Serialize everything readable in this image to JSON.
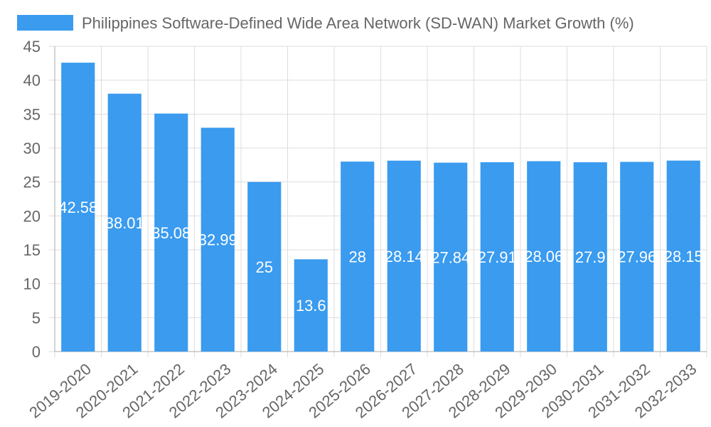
{
  "chart_data": {
    "type": "bar",
    "title": "",
    "xlabel": "",
    "ylabel": "",
    "legend": {
      "placement": "top",
      "entries": [
        "Philippines Software-Defined Wide Area Network (SD-WAN) Market Growth (%)"
      ]
    },
    "categories": [
      "2019-2020",
      "2020-2021",
      "2021-2022",
      "2022-2023",
      "2023-2024",
      "2024-2025",
      "2025-2026",
      "2026-2027",
      "2027-2028",
      "2028-2029",
      "2029-2030",
      "2030-2031",
      "2031-2032",
      "2032-2033"
    ],
    "series": [
      {
        "name": "Philippines Software-Defined Wide Area Network (SD-WAN) Market Growth (%)",
        "values": [
          42.58,
          38.01,
          35.08,
          32.99,
          25,
          13.6,
          28,
          28.14,
          27.84,
          27.91,
          28.06,
          27.9,
          27.96,
          28.15
        ],
        "data_labels": [
          "42.58",
          "38.01",
          "35.08",
          "32.99",
          "25",
          "13.6",
          "28",
          "28.14",
          "27.84",
          "27.91",
          "28.06",
          "27.9",
          "27.96",
          "28.15"
        ]
      }
    ],
    "ylim": [
      0,
      45
    ],
    "yticks": [
      0,
      5,
      10,
      15,
      20,
      25,
      30,
      35,
      40,
      45
    ],
    "grid": true,
    "colors": {
      "bar": "#3a9bef",
      "text": "#666666",
      "grid": "#dddddd",
      "label": "#ffffff"
    }
  }
}
